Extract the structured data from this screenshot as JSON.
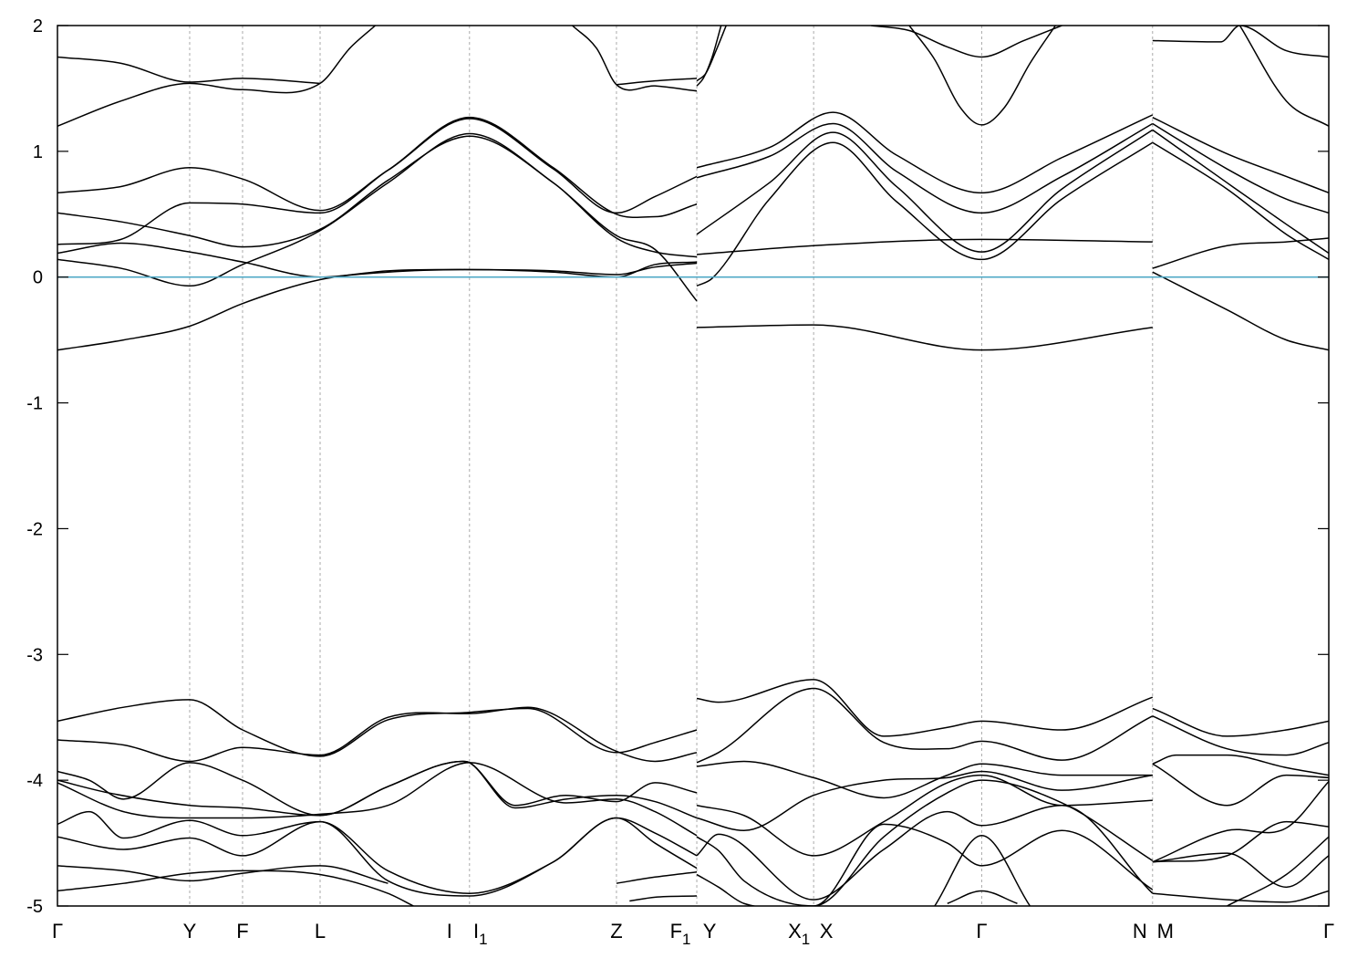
{
  "chart_data": {
    "type": "line",
    "title": "",
    "xlabel": "",
    "ylabel": "",
    "ylim": [
      -5,
      2
    ],
    "yticks": [
      "2",
      "1",
      "0",
      "-1",
      "-2",
      "-3",
      "-4",
      "-5"
    ],
    "yticks_values": [
      2,
      1,
      0,
      -1,
      -2,
      -3,
      -4,
      -5
    ],
    "xlim": [
      0,
      1
    ],
    "kpoints": [
      {
        "label": "Γ",
        "sub": "",
        "pos": 0.0
      },
      {
        "label": "Y",
        "sub": "",
        "pos": 0.104
      },
      {
        "label": "F",
        "sub": "",
        "pos": 0.1456
      },
      {
        "label": "L",
        "sub": "",
        "pos": 0.2066
      },
      {
        "label": "I",
        "sub": "",
        "pos": 0.3184
      },
      {
        "label": "I",
        "sub": "1",
        "pos": 0.3241
      },
      {
        "label": "Z",
        "sub": "",
        "pos": 0.4397
      },
      {
        "label": "F",
        "sub": "1",
        "pos": 0.5029
      },
      {
        "label": "Y",
        "sub": "",
        "pos": 0.5029
      },
      {
        "label": "X",
        "sub": "1",
        "pos": 0.5948
      },
      {
        "label": "X",
        "sub": "",
        "pos": 0.5948
      },
      {
        "label": "Γ",
        "sub": "",
        "pos": 0.727
      },
      {
        "label": "N",
        "sub": "",
        "pos": 0.8614
      },
      {
        "label": "M",
        "sub": "",
        "pos": 0.8614
      },
      {
        "label": "Γ",
        "sub": "",
        "pos": 1.0
      }
    ],
    "vlines": [
      0.104,
      0.1456,
      0.2066,
      0.3241,
      0.4397,
      0.5029,
      0.5948,
      0.727,
      0.8614
    ],
    "fermi_level": 0,
    "colors": {
      "bands": "#000000",
      "fermi": "#4fa9c6",
      "grid": "#aaaaaa"
    },
    "series": [
      {
        "x": [
          0.0,
          0.052,
          0.104,
          0.1456,
          0.2066,
          0.26,
          0.3241,
          0.39,
          0.4397,
          0.47,
          0.5029
        ],
        "y": [
          -0.58,
          -0.5,
          -0.39,
          -0.21,
          -0.02,
          0.04,
          0.06,
          0.05,
          0.02,
          0.08,
          0.11
        ]
      },
      {
        "x": [
          0.0,
          0.05,
          0.104,
          0.1456,
          0.2066,
          0.26,
          0.3241,
          0.39,
          0.4397,
          0.47,
          0.5029
        ],
        "y": [
          0.14,
          0.07,
          -0.07,
          0.1,
          0.37,
          0.75,
          1.14,
          0.75,
          0.33,
          0.22,
          -0.19
        ]
      },
      {
        "x": [
          0.0,
          0.05,
          0.104,
          0.1456,
          0.2066,
          0.26,
          0.3241,
          0.39,
          0.4397,
          0.47,
          0.5029
        ],
        "y": [
          0.19,
          0.27,
          0.2,
          0.12,
          0.0,
          0.05,
          0.06,
          0.04,
          0.0,
          0.1,
          0.12
        ]
      },
      {
        "x": [
          0.0,
          0.05,
          0.104,
          0.1456,
          0.2066,
          0.26,
          0.3241,
          0.39,
          0.4397,
          0.47,
          0.5029
        ],
        "y": [
          0.51,
          0.44,
          0.33,
          0.24,
          0.38,
          0.77,
          1.12,
          0.75,
          0.31,
          0.2,
          0.16
        ]
      },
      {
        "x": [
          0.0,
          0.05,
          0.104,
          0.1456,
          0.2066,
          0.26,
          0.3241,
          0.39,
          0.4397,
          0.47,
          0.5029
        ],
        "y": [
          0.26,
          0.3,
          0.59,
          0.58,
          0.51,
          0.85,
          1.27,
          0.87,
          0.5,
          0.48,
          0.58
        ]
      },
      {
        "x": [
          0.0,
          0.05,
          0.104,
          0.1456,
          0.2066,
          0.26,
          0.3241,
          0.39,
          0.4397,
          0.47,
          0.5029
        ],
        "y": [
          0.67,
          0.72,
          0.87,
          0.78,
          0.53,
          0.85,
          1.26,
          0.86,
          0.51,
          0.64,
          0.8
        ]
      },
      {
        "x": [
          0.0,
          0.05,
          0.104,
          0.1456,
          0.2066,
          0.23,
          0.25
        ],
        "y": [
          1.2,
          1.4,
          1.54,
          1.49,
          1.54,
          1.82,
          2.0
        ]
      },
      {
        "x": [
          0.0,
          0.05,
          0.104,
          0.1456,
          0.2066
        ],
        "y": [
          1.75,
          1.7,
          1.55,
          1.58,
          1.54
        ]
      },
      {
        "x": [
          0.405,
          0.424,
          0.4397,
          0.47,
          0.5029
        ],
        "y": [
          2.0,
          1.82,
          1.53,
          1.52,
          1.48
        ]
      },
      {
        "x": [
          0.4397,
          0.47,
          0.5029
        ],
        "y": [
          1.53,
          1.56,
          1.58
        ]
      },
      {
        "x": [
          0.5029,
          0.5948,
          0.727,
          0.8614
        ],
        "y": [
          -0.4,
          -0.38,
          -0.58,
          -0.4
        ]
      },
      {
        "x": [
          0.5029,
          0.5948,
          0.727,
          0.8614
        ],
        "y": [
          0.18,
          0.25,
          0.3,
          0.28
        ]
      },
      {
        "x": [
          0.5029,
          0.515,
          0.56,
          0.61,
          0.66,
          0.727,
          0.79,
          0.8614
        ],
        "y": [
          -0.07,
          -0.01,
          0.62,
          1.07,
          0.6,
          0.14,
          0.62,
          1.07
        ]
      },
      {
        "x": [
          0.5029,
          0.56,
          0.61,
          0.66,
          0.727,
          0.79,
          0.8614
        ],
        "y": [
          0.34,
          0.75,
          1.15,
          0.72,
          0.2,
          0.7,
          1.17
        ]
      },
      {
        "x": [
          0.5029,
          0.56,
          0.61,
          0.66,
          0.727,
          0.79,
          0.8614
        ],
        "y": [
          0.79,
          0.96,
          1.22,
          0.84,
          0.51,
          0.8,
          1.22
        ]
      },
      {
        "x": [
          0.5029,
          0.56,
          0.61,
          0.66,
          0.727,
          0.79,
          0.8614
        ],
        "y": [
          0.87,
          1.03,
          1.31,
          0.97,
          0.67,
          0.95,
          1.29
        ]
      },
      {
        "x": [
          0.5029,
          0.508,
          0.515,
          0.522
        ],
        "y": [
          1.52,
          1.58,
          1.75,
          2.0
        ]
      },
      {
        "x": [
          0.5029,
          0.51,
          0.518,
          0.526
        ],
        "y": [
          1.56,
          1.62,
          1.8,
          2.0
        ]
      },
      {
        "x": [
          0.64,
          0.67,
          0.7,
          0.727,
          0.76,
          0.79
        ],
        "y": [
          2.0,
          1.96,
          1.83,
          1.75,
          1.88,
          2.0
        ]
      },
      {
        "x": [
          0.67,
          0.69,
          0.71,
          0.727,
          0.745,
          0.765,
          0.785
        ],
        "y": [
          2.0,
          1.73,
          1.35,
          1.21,
          1.35,
          1.7,
          2.0
        ]
      },
      {
        "x": [
          0.8614,
          0.92,
          0.9666,
          1.0
        ],
        "y": [
          0.07,
          0.25,
          0.28,
          0.31
        ]
      },
      {
        "x": [
          0.8614,
          0.92,
          0.9666,
          1.0
        ],
        "y": [
          0.04,
          -0.26,
          -0.5,
          -0.58
        ]
      },
      {
        "x": [
          0.8614,
          0.92,
          0.9666,
          1.0
        ],
        "y": [
          1.07,
          0.7,
          0.34,
          0.14
        ]
      },
      {
        "x": [
          0.8614,
          0.92,
          0.9666,
          1.0
        ],
        "y": [
          1.17,
          0.75,
          0.42,
          0.19
        ]
      },
      {
        "x": [
          0.8614,
          0.92,
          0.9666,
          1.0
        ],
        "y": [
          1.22,
          0.86,
          0.62,
          0.51
        ]
      },
      {
        "x": [
          0.8614,
          0.92,
          0.9666,
          1.0
        ],
        "y": [
          1.27,
          0.98,
          0.8,
          0.67
        ]
      },
      {
        "x": [
          0.8614,
          0.915,
          0.93,
          0.9666,
          1.0
        ],
        "y": [
          1.88,
          1.87,
          2.0,
          1.8,
          1.75
        ]
      },
      {
        "x": [
          0.93,
          0.9666,
          1.0
        ],
        "y": [
          2.0,
          1.4,
          1.2
        ]
      },
      {
        "x": [
          0.0,
          0.052,
          0.104,
          0.1456,
          0.2066,
          0.26,
          0.3241,
          0.37,
          0.4397,
          0.47,
          0.5029
        ],
        "y": [
          -3.53,
          -3.42,
          -3.36,
          -3.6,
          -3.81,
          -3.52,
          -3.46,
          -3.43,
          -3.78,
          -3.7,
          -3.6
        ]
      },
      {
        "x": [
          0.0,
          0.052,
          0.104,
          0.1456,
          0.2066,
          0.26,
          0.3184,
          0.3241,
          0.37,
          0.4397,
          0.47,
          0.5029
        ],
        "y": [
          -3.68,
          -3.72,
          -3.85,
          -3.74,
          -3.8,
          -3.5,
          -3.47,
          -3.47,
          -3.42,
          -3.77,
          -3.85,
          -3.78
        ]
      },
      {
        "x": [
          0.0,
          0.025,
          0.052,
          0.104,
          0.1456,
          0.2066,
          0.26,
          0.3184,
          0.3241,
          0.36,
          0.4,
          0.4397,
          0.47,
          0.5029
        ],
        "y": [
          -3.93,
          -4.0,
          -4.15,
          -3.86,
          -4.0,
          -4.28,
          -4.05,
          -3.85,
          -3.86,
          -4.2,
          -4.12,
          -4.17,
          -4.02,
          -4.1
        ]
      },
      {
        "x": [
          0.0,
          0.04,
          0.104,
          0.1456,
          0.2066,
          0.26,
          0.3184,
          0.3241,
          0.36,
          0.4,
          0.4397,
          0.47,
          0.5029
        ],
        "y": [
          -4.0,
          -4.1,
          -4.2,
          -4.22,
          -4.28,
          -4.05,
          -3.85,
          -3.86,
          -4.22,
          -4.15,
          -4.12,
          -4.17,
          -4.3
        ]
      },
      {
        "x": [
          0.0,
          0.052,
          0.104,
          0.1456,
          0.2066,
          0.26,
          0.3241,
          0.4,
          0.4397,
          0.47,
          0.5029
        ],
        "y": [
          -4.02,
          -4.25,
          -4.3,
          -4.3,
          -4.27,
          -4.2,
          -3.86,
          -4.18,
          -4.15,
          -4.25,
          -4.44
        ]
      },
      {
        "x": [
          0.0,
          0.025,
          0.052,
          0.104,
          0.1456,
          0.2066,
          0.26,
          0.3241,
          0.39,
          0.4397,
          0.47,
          0.5029
        ],
        "y": [
          -4.35,
          -4.25,
          -4.46,
          -4.32,
          -4.44,
          -4.33,
          -4.72,
          -4.9,
          -4.65,
          -4.3,
          -4.42,
          -4.6
        ]
      },
      {
        "x": [
          0.0,
          0.052,
          0.104,
          0.1456,
          0.2066,
          0.26,
          0.3241,
          0.39,
          0.4397,
          0.47,
          0.5029
        ],
        "y": [
          -4.45,
          -4.55,
          -4.46,
          -4.6,
          -4.33,
          -4.8,
          -4.92,
          -4.65,
          -4.3,
          -4.5,
          -4.7
        ]
      },
      {
        "x": [
          0.0,
          0.052,
          0.104,
          0.1456,
          0.2066,
          0.26
        ],
        "y": [
          -4.68,
          -4.72,
          -4.8,
          -4.74,
          -4.68,
          -4.82
        ]
      },
      {
        "x": [
          0.0,
          0.052,
          0.104,
          0.1456,
          0.2066,
          0.26,
          0.28
        ],
        "y": [
          -4.88,
          -4.82,
          -4.74,
          -4.72,
          -4.75,
          -4.9,
          -5.0
        ]
      },
      {
        "x": [
          0.4397,
          0.47,
          0.5029
        ],
        "y": [
          -4.82,
          -4.77,
          -4.73
        ]
      },
      {
        "x": [
          0.45,
          0.47,
          0.5029
        ],
        "y": [
          -4.96,
          -4.93,
          -4.92
        ]
      },
      {
        "x": [
          0.5029,
          0.52,
          0.5948,
          0.65,
          0.7,
          0.727,
          0.79,
          0.8614
        ],
        "y": [
          -3.35,
          -3.38,
          -3.2,
          -3.65,
          -3.58,
          -3.53,
          -3.6,
          -3.34
        ]
      },
      {
        "x": [
          0.5029,
          0.52,
          0.5948,
          0.65,
          0.7,
          0.727,
          0.79,
          0.8614
        ],
        "y": [
          -3.86,
          -3.78,
          -3.27,
          -3.7,
          -3.75,
          -3.69,
          -3.84,
          -3.49
        ]
      },
      {
        "x": [
          0.5029,
          0.54,
          0.5948,
          0.65,
          0.7,
          0.727,
          0.79,
          0.8614
        ],
        "y": [
          -3.89,
          -3.85,
          -3.98,
          -4.14,
          -3.96,
          -3.87,
          -3.96,
          -3.96
        ]
      },
      {
        "x": [
          0.5029,
          0.54,
          0.5948,
          0.65,
          0.7,
          0.727,
          0.79,
          0.8614
        ],
        "y": [
          -4.3,
          -4.4,
          -4.12,
          -4.0,
          -3.98,
          -3.93,
          -4.08,
          -3.96
        ]
      },
      {
        "x": [
          0.5029,
          0.54,
          0.5948,
          0.65,
          0.7,
          0.727,
          0.79,
          0.8614
        ],
        "y": [
          -4.2,
          -4.28,
          -4.6,
          -4.33,
          -4.02,
          -3.96,
          -4.2,
          -4.16
        ]
      },
      {
        "x": [
          0.5029,
          0.52,
          0.54,
          0.5948,
          0.65,
          0.7,
          0.727,
          0.79,
          0.8614
        ],
        "y": [
          -4.45,
          -4.56,
          -4.8,
          -5.0,
          -4.45,
          -4.1,
          -4.0,
          -4.18,
          -4.64
        ]
      },
      {
        "x": [
          0.5029,
          0.52,
          0.5948,
          0.65,
          0.7,
          0.727,
          0.79,
          0.8614
        ],
        "y": [
          -4.6,
          -4.43,
          -4.95,
          -4.55,
          -4.25,
          -4.36,
          -4.2,
          -4.9
        ]
      },
      {
        "x": [
          0.5029,
          0.52,
          0.54,
          0.5948,
          0.65,
          0.7,
          0.727,
          0.79,
          0.8614
        ],
        "y": [
          -4.75,
          -4.85,
          -4.98,
          -5.0,
          -4.35,
          -4.5,
          -4.68,
          -4.4,
          -4.87
        ]
      },
      {
        "x": [
          0.69,
          0.727,
          0.765
        ],
        "y": [
          -5.0,
          -4.44,
          -5.0
        ]
      },
      {
        "x": [
          0.7,
          0.727,
          0.755
        ],
        "y": [
          -4.98,
          -4.88,
          -4.98
        ]
      },
      {
        "x": [
          0.8614,
          0.92,
          0.9666,
          1.0
        ],
        "y": [
          -3.43,
          -3.65,
          -3.6,
          -3.53
        ]
      },
      {
        "x": [
          0.8614,
          0.92,
          0.9666,
          1.0
        ],
        "y": [
          -3.49,
          -3.75,
          -3.8,
          -3.7
        ]
      },
      {
        "x": [
          0.8614,
          0.88,
          0.92,
          0.9666,
          1.0
        ],
        "y": [
          -3.87,
          -3.8,
          -3.8,
          -3.9,
          -3.96
        ]
      },
      {
        "x": [
          0.8614,
          0.92,
          0.9666,
          1.0
        ],
        "y": [
          -3.87,
          -4.2,
          -3.96,
          -3.98
        ]
      },
      {
        "x": [
          0.8614,
          0.92,
          0.9666,
          1.0
        ],
        "y": [
          -4.65,
          -4.6,
          -4.33,
          -4.37
        ]
      },
      {
        "x": [
          0.8614,
          0.92,
          0.9666,
          1.0
        ],
        "y": [
          -4.65,
          -4.4,
          -4.38,
          -4.01
        ]
      },
      {
        "x": [
          0.8614,
          0.92,
          0.9666,
          1.0
        ],
        "y": [
          -4.65,
          -4.58,
          -4.85,
          -4.6
        ]
      },
      {
        "x": [
          0.8614,
          0.92,
          0.9666,
          1.0
        ],
        "y": [
          -4.9,
          -4.95,
          -4.97,
          -4.88
        ]
      },
      {
        "x": [
          0.92,
          0.9666,
          1.0
        ],
        "y": [
          -5.0,
          -4.75,
          -4.45
        ]
      }
    ]
  }
}
